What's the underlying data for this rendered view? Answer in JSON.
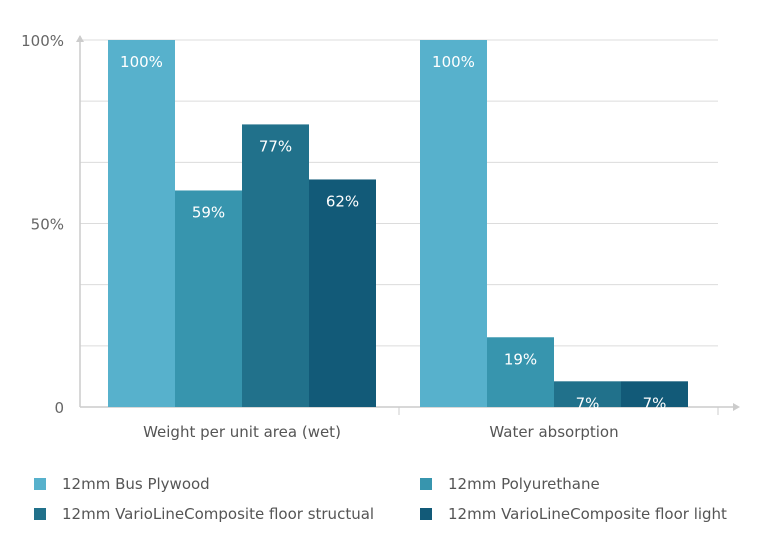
{
  "chart_data": {
    "type": "bar",
    "categories": [
      "Weight per unit area (wet)",
      "Water absorption"
    ],
    "series": [
      {
        "name": "12mm Bus Plywood",
        "values": [
          100,
          100
        ],
        "labels": [
          "100%",
          "100%"
        ],
        "color": "#57b1cc"
      },
      {
        "name": "12mm Polyurethane",
        "values": [
          59,
          19
        ],
        "labels": [
          "59%",
          "19%"
        ],
        "color": "#3795ae"
      },
      {
        "name": "12mm VarioLineComposite floor structual",
        "values": [
          77,
          7
        ],
        "labels": [
          "77%",
          "7%"
        ],
        "color": "#21718b"
      },
      {
        "name": "12mm VarioLineComposite floor light",
        "values": [
          62,
          7
        ],
        "labels": [
          "62%",
          "7%"
        ],
        "color": "#125a78"
      }
    ],
    "yticks": [
      "0",
      "50%",
      "100%"
    ],
    "ylim": [
      0,
      100
    ],
    "grid": true,
    "legend": "bottom"
  }
}
